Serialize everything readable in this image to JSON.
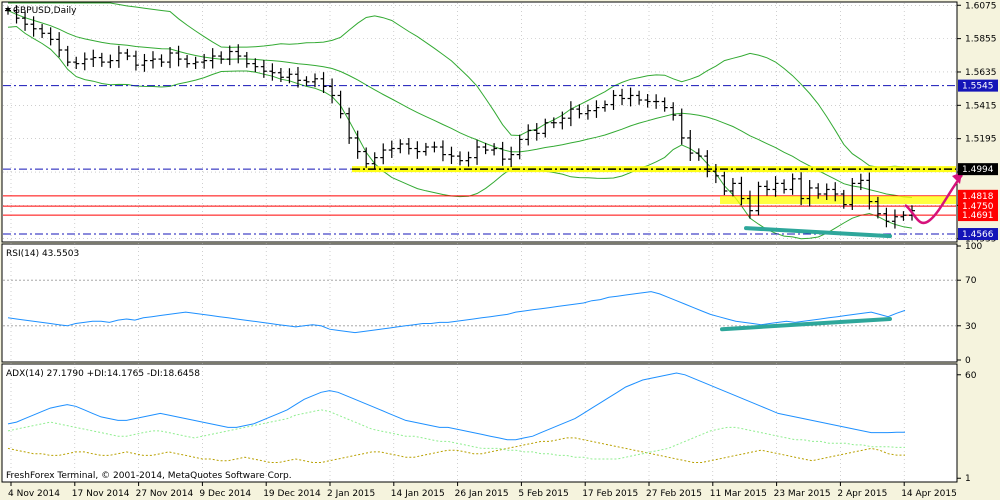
{
  "terminal": {
    "copyright": "FreshForex Terminal, © 2001-2014, MetaQuotes Software Corp.",
    "background": "#f5f3dd",
    "grid_dots": true
  },
  "chart_data": [
    {
      "type": "ohlc",
      "panel": "price",
      "title": "GBPUSD,Daily",
      "dropdown_icon": "triangle-down-icon",
      "y_axis_ticks": [
        1.6075,
        1.5855,
        1.5635,
        1.5415,
        1.5195,
        1.4975,
        1.4755,
        1.4535
      ],
      "ylim": [
        1.452,
        1.609
      ],
      "price_tags": [
        {
          "label": "1.5545",
          "value": 1.5545,
          "style": "dashdot",
          "color": "#1414b8"
        },
        {
          "label": "1.4994",
          "value": 1.4994,
          "style": "dashdot",
          "color": "#1414b8",
          "box": "#000000"
        },
        {
          "label": "1.4818",
          "value": 1.4818,
          "style": "solid",
          "color": "#ff0000"
        },
        {
          "label": "1.4750",
          "value": 1.475,
          "style": "solid",
          "color": "#ff0000"
        },
        {
          "label": "1.4691",
          "value": 1.4691,
          "style": "solid",
          "color": "#ff0000"
        },
        {
          "label": "1.4566",
          "value": 1.4566,
          "style": "dashdot",
          "color": "#1414b8"
        }
      ],
      "bar_color": "#000000",
      "band_color": "#33aa33",
      "support_zone_color": "#ffff00",
      "trendline_color": "#2ea79b",
      "arrow_color": "#d6127b",
      "x_categories": [
        "4 Nov 2014",
        "17 Nov 2014",
        "27 Nov 2014",
        "9 Dec 2014",
        "19 Dec 2014",
        "2 Jan 2015",
        "14 Jan 2015",
        "26 Jan 2015",
        "5 Feb 2015",
        "17 Feb 2015",
        "27 Feb 2015",
        "11 Mar 2015",
        "23 Mar 2015",
        "2 Apr 2015",
        "14 Apr 2015"
      ],
      "closes": [
        1.604,
        1.599,
        1.595,
        1.592,
        1.589,
        1.585,
        1.578,
        1.57,
        1.569,
        1.572,
        1.573,
        1.57,
        1.571,
        1.576,
        1.574,
        1.568,
        1.571,
        1.572,
        1.57,
        1.576,
        1.572,
        1.569,
        1.57,
        1.571,
        1.574,
        1.572,
        1.577,
        1.574,
        1.569,
        1.567,
        1.564,
        1.563,
        1.56,
        1.562,
        1.558,
        1.557,
        1.559,
        1.554,
        1.548,
        1.536,
        1.52,
        1.511,
        1.503,
        1.507,
        1.512,
        1.513,
        1.516,
        1.513,
        1.511,
        1.514,
        1.514,
        1.509,
        1.508,
        1.505,
        1.507,
        1.514,
        1.512,
        1.513,
        1.506,
        1.509,
        1.519,
        1.525,
        1.523,
        1.53,
        1.53,
        1.533,
        1.539,
        1.536,
        1.538,
        1.54,
        1.542,
        1.548,
        1.546,
        1.548,
        1.545,
        1.544,
        1.544,
        1.54,
        1.535,
        1.52,
        1.51,
        1.508,
        1.498,
        1.495,
        1.485,
        1.49,
        1.48,
        1.472,
        1.488,
        1.486,
        1.49,
        1.486,
        1.493,
        1.48,
        1.487,
        1.483,
        1.486,
        1.483,
        1.476,
        1.49,
        1.492,
        1.478,
        1.47,
        1.465,
        1.468,
        1.469,
        1.472
      ]
    },
    {
      "type": "line",
      "panel": "rsi",
      "title": "RSI(14) 43.5503",
      "ylim": [
        0,
        100
      ],
      "y_axis_ticks": [
        100,
        70,
        30,
        0
      ],
      "levels": [
        70,
        30
      ],
      "line_color": "#1e90ff",
      "trendline_color": "#2ea79b",
      "values": [
        37,
        36,
        35,
        34,
        33,
        32,
        31,
        30,
        32,
        33,
        34,
        34,
        33,
        35,
        36,
        35,
        37,
        38,
        39,
        40,
        41,
        42,
        41,
        40,
        39,
        38,
        37,
        36,
        35,
        34,
        33,
        32,
        31,
        30,
        29,
        30,
        31,
        30,
        27,
        26,
        25,
        24,
        25,
        26,
        27,
        28,
        29,
        30,
        31,
        32,
        32,
        33,
        33,
        34,
        35,
        36,
        37,
        38,
        39,
        40,
        42,
        43,
        44,
        45,
        46,
        47,
        48,
        49,
        50,
        52,
        53,
        55,
        56,
        57,
        58,
        59,
        60,
        58,
        55,
        52,
        49,
        46,
        43,
        40,
        38,
        36,
        34,
        33,
        32,
        31,
        32,
        33,
        34,
        33,
        34,
        35,
        36,
        37,
        38,
        39,
        40,
        41,
        42,
        40,
        38,
        41,
        43.55
      ]
    },
    {
      "type": "line",
      "panel": "adx",
      "title": "ADX(14) 27.1790 +DI:14.1765 -DI:18.6458",
      "ylim": [
        0,
        65
      ],
      "y_axis_ticks": [
        60,
        1
      ],
      "series": [
        {
          "name": "ADX(14)",
          "color": "#1e90ff",
          "style": "solid",
          "values": [
            32,
            33,
            35,
            37,
            39,
            41,
            42,
            43,
            42,
            40,
            38,
            36,
            35,
            34,
            34,
            35,
            36,
            37,
            38,
            37,
            36,
            35,
            34,
            33,
            32,
            31,
            30,
            30,
            31,
            32,
            34,
            36,
            38,
            40,
            43,
            46,
            48,
            50,
            51,
            50,
            48,
            46,
            44,
            42,
            40,
            38,
            36,
            34,
            33,
            32,
            31,
            30,
            30,
            29,
            28,
            27,
            26,
            25,
            24,
            23,
            23,
            24,
            25,
            27,
            29,
            31,
            33,
            35,
            38,
            41,
            44,
            47,
            50,
            53,
            55,
            57,
            58,
            59,
            60,
            61,
            60,
            58,
            56,
            54,
            52,
            50,
            48,
            46,
            44,
            42,
            40,
            38,
            37,
            36,
            35,
            34,
            33,
            32,
            31,
            30,
            29,
            28,
            27,
            27,
            27,
            27.18,
            27.18
          ]
        },
        {
          "name": "+DI",
          "color": "#b8a000",
          "style": "dashed",
          "values": [
            18,
            17,
            16,
            15,
            15,
            14,
            14,
            15,
            16,
            16,
            15,
            14,
            14,
            15,
            16,
            15,
            14,
            14,
            15,
            16,
            15,
            14,
            13,
            12,
            12,
            11,
            11,
            12,
            13,
            12,
            11,
            10,
            10,
            11,
            12,
            11,
            10,
            10,
            11,
            12,
            13,
            14,
            15,
            16,
            16,
            15,
            14,
            13,
            13,
            14,
            15,
            16,
            17,
            17,
            16,
            15,
            15,
            16,
            17,
            18,
            19,
            20,
            21,
            22,
            22,
            23,
            24,
            24,
            23,
            22,
            21,
            20,
            19,
            18,
            17,
            16,
            15,
            14,
            13,
            12,
            11,
            10,
            10,
            11,
            12,
            13,
            14,
            15,
            16,
            17,
            16,
            15,
            14,
            13,
            12,
            11,
            12,
            13,
            14,
            15,
            16,
            17,
            18,
            17,
            15,
            14.2,
            14.2
          ]
        },
        {
          "name": "-DI",
          "color": "#90ee90",
          "style": "dashed",
          "values": [
            28,
            29,
            30,
            31,
            32,
            33,
            32,
            31,
            30,
            29,
            28,
            27,
            26,
            25,
            25,
            26,
            27,
            28,
            28,
            27,
            26,
            25,
            24,
            25,
            26,
            27,
            28,
            29,
            30,
            31,
            32,
            33,
            34,
            35,
            37,
            38,
            39,
            40,
            39,
            37,
            35,
            33,
            31,
            29,
            28,
            27,
            26,
            25,
            25,
            24,
            23,
            22,
            22,
            21,
            20,
            19,
            18,
            18,
            18,
            17,
            17,
            16,
            16,
            15,
            15,
            14,
            14,
            13,
            13,
            12,
            12,
            12,
            12,
            13,
            14,
            15,
            16,
            17,
            18,
            20,
            22,
            24,
            26,
            28,
            29,
            30,
            30,
            29,
            28,
            27,
            26,
            25,
            24,
            23,
            23,
            22,
            22,
            21,
            21,
            21,
            20,
            20,
            19,
            19,
            19,
            18.6,
            18.6
          ]
        }
      ]
    }
  ]
}
